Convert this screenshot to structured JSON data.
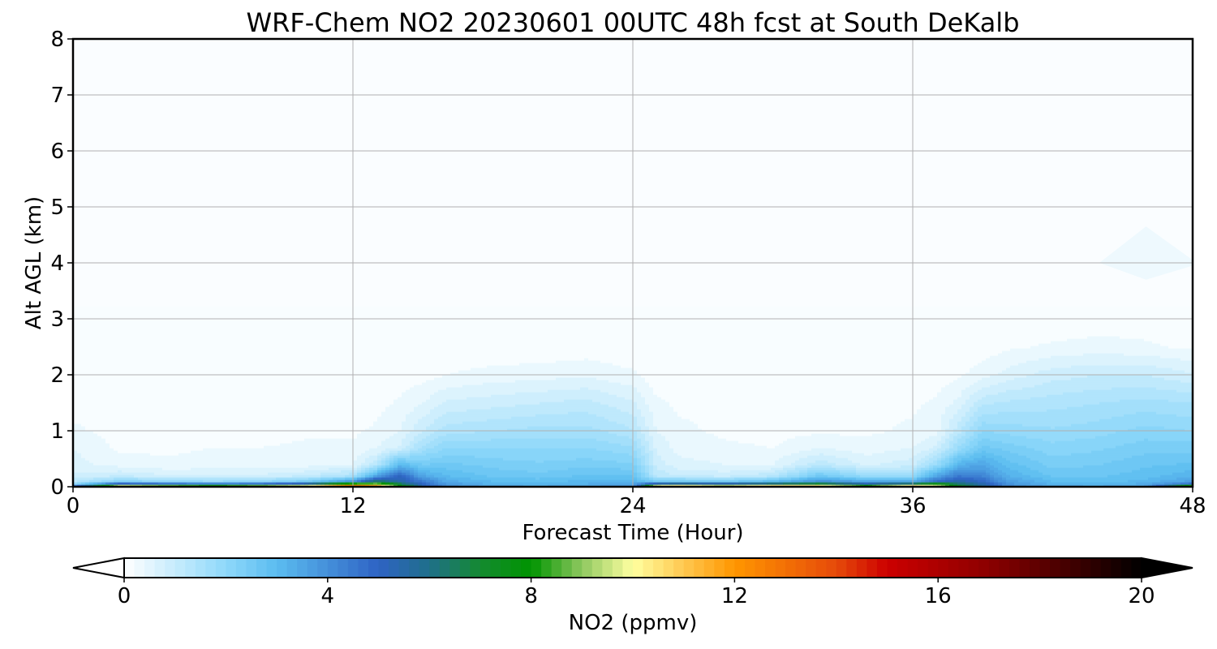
{
  "chart_data": {
    "type": "heatmap",
    "title": "WRF-Chem NO2  20230601 00UTC 48h fcst at South DeKalb",
    "xlabel": "Forecast Time (Hour)",
    "ylabel": "Alt AGL (km)",
    "xlim": [
      0,
      48
    ],
    "ylim": [
      0,
      8
    ],
    "x_ticks": [
      "0",
      "12",
      "24",
      "36",
      "48"
    ],
    "y_ticks": [
      "0",
      "1",
      "2",
      "3",
      "4",
      "5",
      "6",
      "7",
      "8"
    ],
    "grid": true,
    "colorbar": {
      "label": "NO2  (ppmv)",
      "range": [
        0,
        20
      ],
      "extend": "both",
      "ticks": [
        "0",
        "4",
        "8",
        "12",
        "16",
        "20"
      ],
      "stops": [
        {
          "v": 0,
          "color": "#ffffff"
        },
        {
          "v": 2,
          "color": "#8ed8fa"
        },
        {
          "v": 3,
          "color": "#5bbcf0"
        },
        {
          "v": 5,
          "color": "#2e63c4"
        },
        {
          "v": 6,
          "color": "#1f6f8a"
        },
        {
          "v": 7,
          "color": "#148a30"
        },
        {
          "v": 8,
          "color": "#009400"
        },
        {
          "v": 9,
          "color": "#8fc860"
        },
        {
          "v": 10,
          "color": "#ffffa0"
        },
        {
          "v": 11,
          "color": "#ffc850"
        },
        {
          "v": 12,
          "color": "#ff9600"
        },
        {
          "v": 14,
          "color": "#e64a0a"
        },
        {
          "v": 15,
          "color": "#cc0000"
        },
        {
          "v": 17,
          "color": "#8c0000"
        },
        {
          "v": 20,
          "color": "#000000"
        }
      ]
    },
    "profile_heights_km": [
      0,
      0.05,
      0.1,
      0.2,
      0.4,
      0.7,
      1.0,
      1.5,
      2.0,
      2.5,
      3.0,
      4.0,
      5.0,
      8.0
    ],
    "times_hour": [
      0,
      2,
      4,
      6,
      8,
      10,
      12,
      13,
      14,
      15,
      16,
      18,
      20,
      22,
      24,
      25,
      26,
      28,
      30,
      32,
      34,
      36,
      37,
      38,
      39,
      40,
      42,
      44,
      46,
      48
    ],
    "values_ppmv": [
      [
        6.0,
        1.8,
        1.2,
        0.8,
        0.6,
        0.5,
        0.3,
        0.15,
        0.1,
        0.05,
        0.05,
        0.05,
        0.05,
        0.05
      ],
      [
        12.0,
        6.0,
        2.2,
        1.0,
        0.4,
        0.2,
        0.15,
        0.1,
        0.05,
        0.05,
        0.05,
        0.05,
        0.05,
        0.05
      ],
      [
        11.0,
        5.5,
        2.0,
        0.8,
        0.3,
        0.2,
        0.15,
        0.1,
        0.05,
        0.05,
        0.05,
        0.05,
        0.05,
        0.05
      ],
      [
        10.5,
        5.0,
        1.8,
        0.8,
        0.35,
        0.25,
        0.15,
        0.1,
        0.05,
        0.05,
        0.05,
        0.05,
        0.05,
        0.05
      ],
      [
        11.0,
        5.5,
        2.0,
        0.8,
        0.4,
        0.25,
        0.15,
        0.1,
        0.05,
        0.05,
        0.05,
        0.05,
        0.05,
        0.05
      ],
      [
        12.0,
        6.5,
        2.5,
        1.0,
        0.4,
        0.3,
        0.2,
        0.1,
        0.05,
        0.05,
        0.05,
        0.05,
        0.05,
        0.05
      ],
      [
        14.5,
        10.0,
        4.0,
        1.5,
        0.5,
        0.3,
        0.2,
        0.1,
        0.05,
        0.05,
        0.05,
        0.05,
        0.05,
        0.05
      ],
      [
        13.0,
        9.5,
        6.5,
        3.5,
        1.2,
        0.5,
        0.3,
        0.15,
        0.05,
        0.05,
        0.05,
        0.05,
        0.05,
        0.05
      ],
      [
        8.5,
        7.0,
        5.5,
        5.0,
        3.0,
        0.8,
        0.5,
        0.3,
        0.1,
        0.05,
        0.05,
        0.05,
        0.05,
        0.05
      ],
      [
        5.5,
        5.0,
        4.5,
        3.5,
        2.5,
        1.6,
        1.0,
        0.5,
        0.15,
        0.05,
        0.05,
        0.05,
        0.05,
        0.05
      ],
      [
        4.0,
        3.8,
        3.4,
        3.0,
        2.6,
        2.0,
        1.4,
        0.8,
        0.25,
        0.05,
        0.05,
        0.05,
        0.05,
        0.05
      ],
      [
        3.4,
        3.2,
        3.0,
        2.7,
        2.4,
        2.0,
        1.5,
        0.9,
        0.35,
        0.05,
        0.05,
        0.05,
        0.05,
        0.05
      ],
      [
        3.3,
        3.1,
        2.9,
        2.6,
        2.3,
        2.0,
        1.6,
        1.0,
        0.4,
        0.05,
        0.05,
        0.05,
        0.05,
        0.05
      ],
      [
        3.5,
        3.3,
        3.1,
        2.8,
        2.4,
        2.0,
        1.6,
        1.1,
        0.45,
        0.1,
        0.05,
        0.05,
        0.05,
        0.05
      ],
      [
        3.8,
        3.5,
        3.2,
        2.8,
        2.3,
        1.8,
        1.3,
        0.8,
        0.3,
        0.05,
        0.05,
        0.05,
        0.05,
        0.05
      ],
      [
        12.0,
        6.5,
        2.5,
        1.2,
        0.9,
        0.7,
        0.5,
        0.3,
        0.1,
        0.05,
        0.05,
        0.05,
        0.05,
        0.05
      ],
      [
        12.5,
        7.0,
        2.6,
        1.0,
        0.6,
        0.4,
        0.3,
        0.2,
        0.1,
        0.05,
        0.05,
        0.05,
        0.05,
        0.05
      ],
      [
        11.5,
        6.5,
        2.5,
        0.9,
        0.5,
        0.3,
        0.2,
        0.2,
        0.1,
        0.05,
        0.05,
        0.05,
        0.05,
        0.05
      ],
      [
        12.5,
        7.5,
        3.0,
        1.2,
        0.5,
        0.25,
        0.15,
        0.2,
        0.1,
        0.05,
        0.05,
        0.05,
        0.05,
        0.05
      ],
      [
        12.0,
        8.0,
        4.0,
        2.6,
        1.2,
        0.5,
        0.2,
        0.15,
        0.05,
        0.05,
        0.05,
        0.05,
        0.05,
        0.05
      ],
      [
        9.5,
        6.0,
        3.5,
        1.8,
        0.7,
        0.35,
        0.2,
        0.15,
        0.05,
        0.05,
        0.05,
        0.05,
        0.05,
        0.05
      ],
      [
        12.5,
        7.5,
        3.5,
        1.8,
        0.9,
        0.5,
        0.3,
        0.2,
        0.05,
        0.05,
        0.05,
        0.05,
        0.05,
        0.05
      ],
      [
        10.5,
        8.5,
        4.8,
        3.5,
        1.8,
        0.8,
        0.4,
        0.3,
        0.1,
        0.05,
        0.05,
        0.05,
        0.05,
        0.05
      ],
      [
        7.5,
        6.5,
        5.5,
        4.5,
        3.2,
        1.8,
        1.2,
        0.6,
        0.2,
        0.05,
        0.05,
        0.05,
        0.05,
        0.05
      ],
      [
        5.8,
        5.5,
        5.0,
        4.2,
        3.5,
        2.6,
        2.0,
        1.2,
        0.4,
        0.1,
        0.05,
        0.05,
        0.05,
        0.05
      ],
      [
        4.2,
        4.0,
        3.7,
        3.3,
        2.9,
        2.4,
        1.9,
        1.3,
        0.6,
        0.2,
        0.05,
        0.05,
        0.05,
        0.05
      ],
      [
        3.4,
        3.2,
        3.0,
        2.7,
        2.4,
        2.1,
        1.8,
        1.4,
        0.9,
        0.3,
        0.05,
        0.05,
        0.05,
        0.05
      ],
      [
        3.3,
        3.1,
        2.9,
        2.7,
        2.5,
        2.2,
        1.9,
        1.5,
        1.0,
        0.35,
        0.1,
        0.05,
        0.05,
        0.05
      ],
      [
        3.6,
        3.4,
        3.1,
        2.9,
        2.7,
        2.4,
        2.1,
        1.6,
        1.0,
        0.3,
        0.1,
        0.15,
        0.05,
        0.05
      ],
      [
        11.0,
        5.0,
        3.6,
        3.2,
        2.8,
        2.4,
        2.0,
        1.5,
        0.8,
        0.2,
        0.05,
        0.1,
        0.05,
        0.05
      ]
    ]
  }
}
